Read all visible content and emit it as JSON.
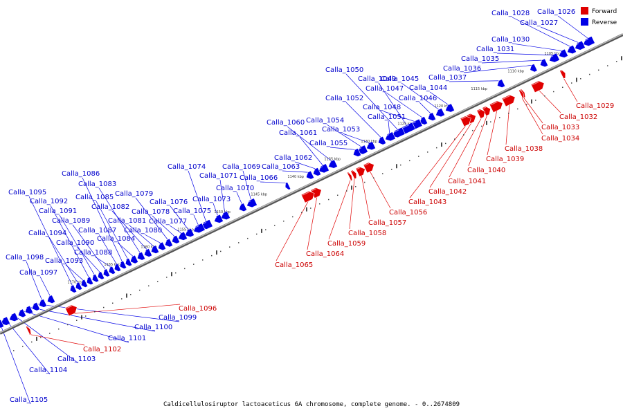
{
  "colors": {
    "forward": "#e00000",
    "reverse": "#0000e6",
    "forward_label": "#cc0000",
    "reverse_label": "#0000cc",
    "backbone": "#777777"
  },
  "legend": {
    "forward": "Forward",
    "reverse": "Reverse"
  },
  "caption": "Caldicellulosiruptor lactoaceticus 6A chromosome, complete genome. - 0..2674809",
  "axis_ticks": [
    "1105 kbp",
    "1110 kbp",
    "1115 kbp",
    "1120 kbp",
    "1125 kbp",
    "1130 kbp",
    "1135 kbp",
    "1140 kbp",
    "1145 kbp",
    "1150 kbp",
    "1155 kbp",
    "1160 kbp",
    "1165 kbp",
    "1170 kbp"
  ],
  "reverse_genes": [
    "Calla_1026",
    "Calla_1027",
    "Calla_1028",
    "Calla_1030",
    "Calla_1031",
    "Calla_1035",
    "Calla_1036",
    "Calla_1037",
    "Calla_1044",
    "Calla_1045",
    "Calla_1046",
    "Calla_1047",
    "Calla_1048",
    "Calla_1049",
    "Calla_1050",
    "Calla_1051",
    "Calla_1052",
    "Calla_1053",
    "Calla_1054",
    "Calla_1055",
    "Calla_1060",
    "Calla_1061",
    "Calla_1062",
    "Calla_1063",
    "Calla_1066",
    "Calla_1069",
    "Calla_1070",
    "Calla_1071",
    "Calla_1073",
    "Calla_1074",
    "Calla_1075",
    "Calla_1076",
    "Calla_1077",
    "Calla_1078",
    "Calla_1079",
    "Calla_1080",
    "Calla_1081",
    "Calla_1082",
    "Calla_1083",
    "Calla_1084",
    "Calla_1085",
    "Calla_1086",
    "Calla_1087",
    "Calla_1088",
    "Calla_1089",
    "Calla_1090",
    "Calla_1091",
    "Calla_1092",
    "Calla_1093",
    "Calla_1094",
    "Calla_1095",
    "Calla_1097",
    "Calla_1098",
    "Calla_1099",
    "Calla_1100",
    "Calla_1101",
    "Calla_1103",
    "Calla_1104",
    "Calla_1105"
  ],
  "forward_genes": [
    "Calla_1029",
    "Calla_1032",
    "Calla_1033",
    "Calla_1034",
    "Calla_1038",
    "Calla_1039",
    "Calla_1040",
    "Calla_1041",
    "Calla_1042",
    "Calla_1043",
    "Calla_1056",
    "Calla_1057",
    "Calla_1058",
    "Calla_1059",
    "Calla_1064",
    "Calla_1065",
    "Calla_1096",
    "Calla_1102"
  ]
}
